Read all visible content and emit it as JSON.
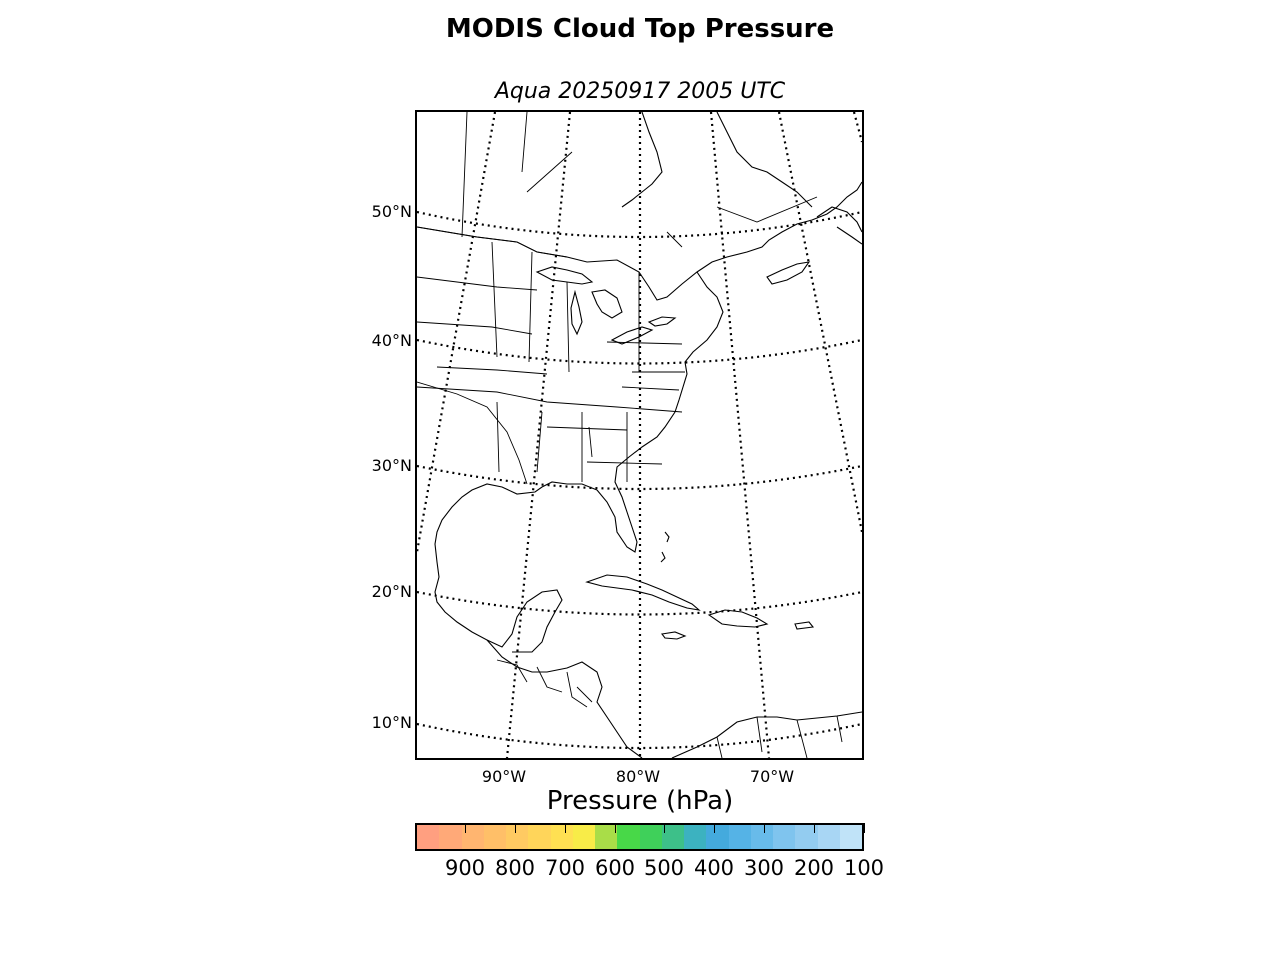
{
  "figure": {
    "title": "MODIS Cloud Top Pressure",
    "subtitle": "Aqua 20250917 2005 UTC"
  },
  "map": {
    "projection": "conic",
    "latitude_labels": [
      "50°N",
      "40°N",
      "30°N",
      "20°N",
      "10°N"
    ],
    "longitude_labels": [
      "90°W",
      "80°W",
      "70°W"
    ],
    "graticule_style": "dotted",
    "coastline_color": "#000000"
  },
  "colorbar": {
    "title": "Pressure (hPa)",
    "tick_labels": [
      "900",
      "800",
      "700",
      "600",
      "500",
      "400",
      "300",
      "200",
      "100"
    ],
    "range": [
      1000,
      100
    ],
    "colors": [
      "#ff9f80",
      "#ffa978",
      "#ffb570",
      "#ffbf68",
      "#ffca62",
      "#ffd55a",
      "#ffe052",
      "#f8ec48",
      "#a9dd48",
      "#48d848",
      "#3fd05a",
      "#3dc089",
      "#3cb2c0",
      "#44aadd",
      "#55b3e6",
      "#68bbea",
      "#7fc4ee",
      "#93ccf0",
      "#a8d6f4",
      "#c0e3f8"
    ]
  }
}
